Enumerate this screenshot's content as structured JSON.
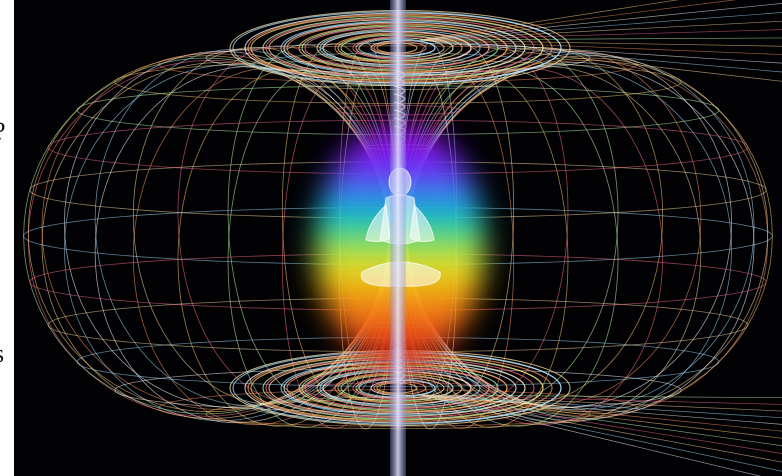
{
  "margin_text": {
    "top": "?",
    "bottom": "s"
  }
}
